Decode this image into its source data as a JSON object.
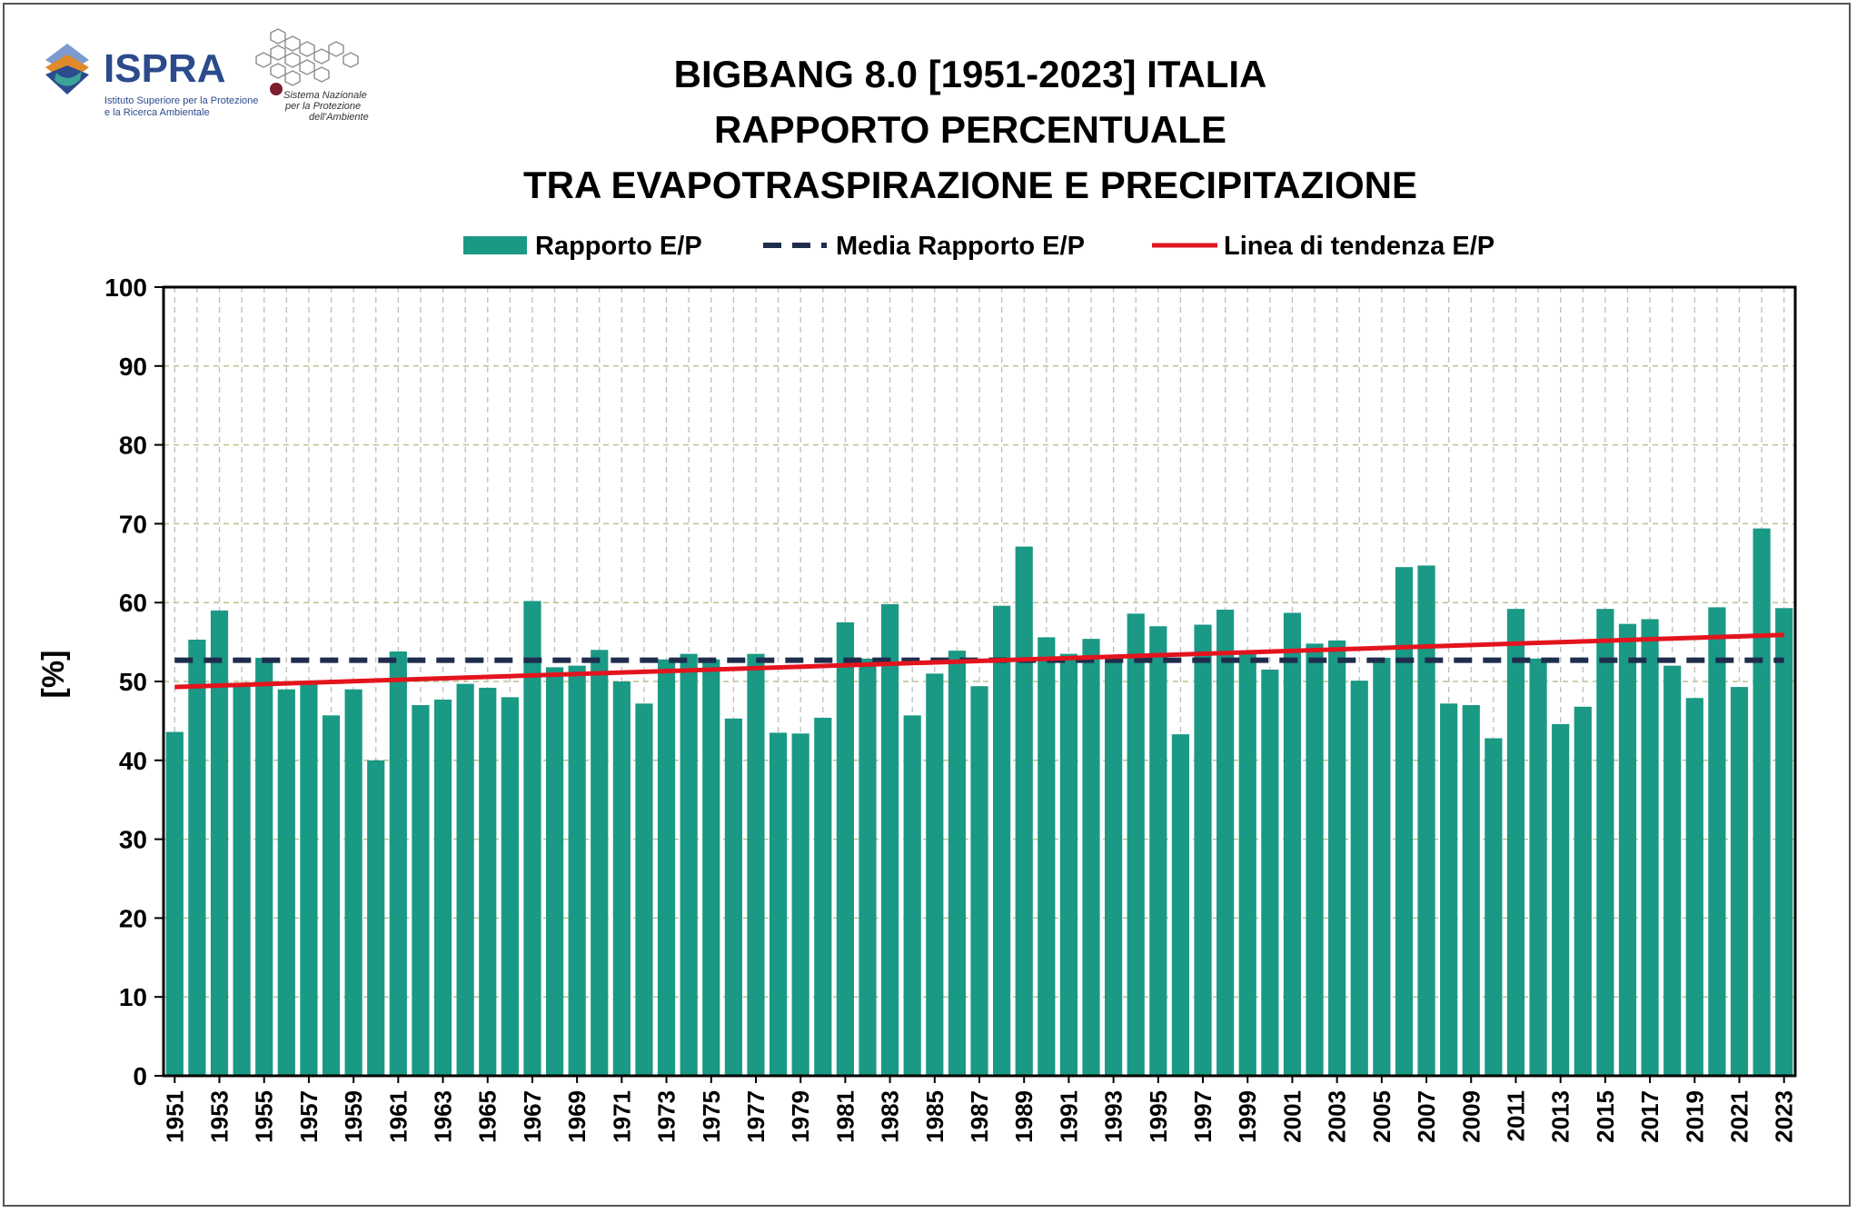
{
  "header": {
    "ispra_name": "ISPRA",
    "ispra_sub1": "Istituto Superiore per la Protezione",
    "ispra_sub2": "e la Ricerca Ambientale",
    "snpa_line1": "Sistema Nazionale",
    "snpa_line2": "per la Protezione",
    "snpa_line3": "dell'Ambiente"
  },
  "colors": {
    "bar": "#1a9985",
    "mean": "#1f2d4d",
    "trend": "#e3141e",
    "grid": "#b8c490"
  },
  "chart_data": {
    "type": "bar",
    "title_lines": [
      "BIGBANG 8.0 [1951-2023] ITALIA",
      "RAPPORTO PERCENTUALE",
      "TRA EVAPOTRASPIRAZIONE E PRECIPITAZIONE"
    ],
    "ylabel": "[%]",
    "ylim": [
      0,
      100
    ],
    "yticks": [
      0,
      10,
      20,
      30,
      40,
      50,
      60,
      70,
      80,
      90,
      100
    ],
    "legend": {
      "bars": "Rapporto E/P",
      "mean": "Media Rapporto E/P",
      "trend": "Linea di tendenza E/P",
      "placement": "top"
    },
    "x": [
      1951,
      1952,
      1953,
      1954,
      1955,
      1956,
      1957,
      1958,
      1959,
      1960,
      1961,
      1962,
      1963,
      1964,
      1965,
      1966,
      1967,
      1968,
      1969,
      1970,
      1971,
      1972,
      1973,
      1974,
      1975,
      1976,
      1977,
      1978,
      1979,
      1980,
      1981,
      1982,
      1983,
      1984,
      1985,
      1986,
      1987,
      1988,
      1989,
      1990,
      1991,
      1992,
      1993,
      1994,
      1995,
      1996,
      1997,
      1998,
      1999,
      2000,
      2001,
      2002,
      2003,
      2004,
      2005,
      2006,
      2007,
      2008,
      2009,
      2010,
      2011,
      2012,
      2013,
      2014,
      2015,
      2016,
      2017,
      2018,
      2019,
      2020,
      2021,
      2022,
      2023
    ],
    "x_tick_labels": [
      "1951",
      "1953",
      "1955",
      "1957",
      "1959",
      "1961",
      "1963",
      "1965",
      "1967",
      "1969",
      "1971",
      "1973",
      "1975",
      "1977",
      "1979",
      "1981",
      "1983",
      "1985",
      "1987",
      "1989",
      "1991",
      "1993",
      "1995",
      "1997",
      "1999",
      "2001",
      "2003",
      "2005",
      "2007",
      "2009",
      "2011",
      "2013",
      "2015",
      "2017",
      "2019",
      "2021",
      "2023"
    ],
    "values": [
      43.6,
      55.3,
      59.0,
      49.7,
      53.0,
      49.0,
      49.9,
      45.7,
      49.0,
      40.0,
      53.8,
      47.0,
      47.7,
      49.7,
      49.2,
      48.0,
      60.2,
      51.8,
      52.0,
      54.0,
      50.0,
      47.2,
      52.8,
      53.5,
      52.8,
      45.3,
      53.5,
      43.5,
      43.4,
      45.4,
      57.5,
      52.9,
      59.8,
      45.7,
      51.0,
      53.9,
      49.4,
      59.6,
      67.1,
      55.6,
      53.5,
      55.4,
      52.6,
      58.6,
      57.0,
      43.3,
      57.2,
      59.1,
      53.9,
      51.5,
      58.7,
      54.8,
      55.2,
      50.1,
      53.0,
      64.5,
      64.7,
      47.2,
      47.0,
      42.8,
      59.2,
      52.9,
      44.6,
      46.8,
      59.2,
      57.3,
      57.9,
      52.0,
      47.9,
      59.4,
      49.3,
      69.4,
      59.3
    ],
    "mean_value": 52.7,
    "trend": {
      "start": 49.3,
      "end": 55.9
    },
    "grid": true
  }
}
